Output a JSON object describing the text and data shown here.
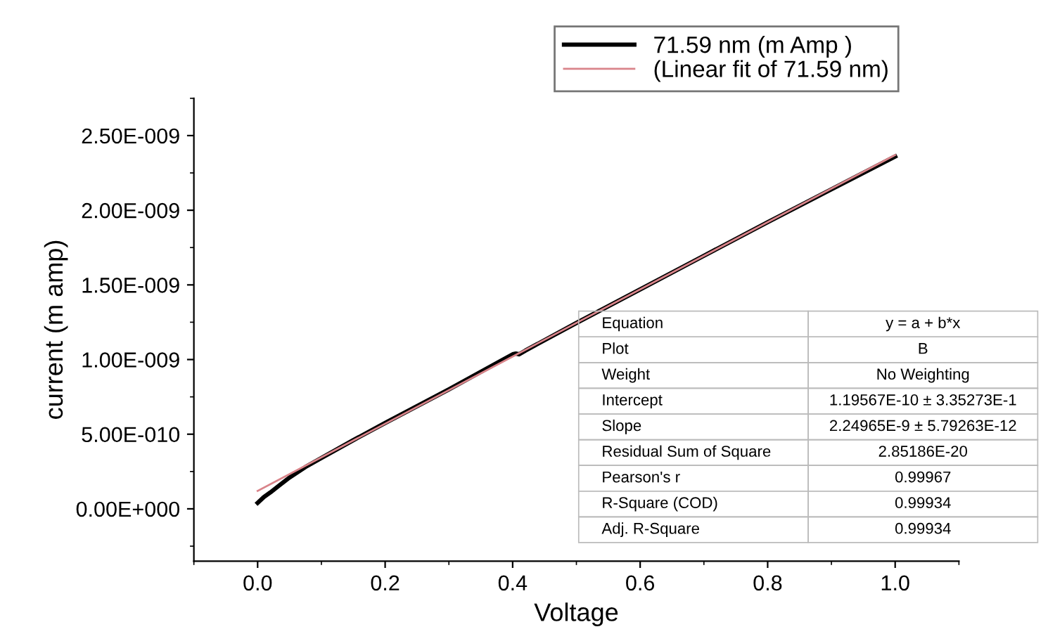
{
  "chart_data": {
    "type": "line",
    "xlabel": "Voltage",
    "ylabel": "current (m amp)",
    "xlim": [
      -0.1,
      1.1
    ],
    "xticks": [
      {
        "value": 0,
        "label": "0.0"
      },
      0.2,
      0.4,
      0.6,
      0.8,
      {
        "value": 1,
        "label": "1.0"
      }
    ],
    "ylim": [
      -3.5e-10,
      2.75e-09
    ],
    "yticks": [
      {
        "value": 0,
        "label": "0.00E+000"
      },
      {
        "value": 5e-10,
        "label": "5.00E-010"
      },
      {
        "value": 1e-09,
        "label": "1.00E-009"
      },
      {
        "value": 1.5e-09,
        "label": "1.50E-009"
      },
      {
        "value": 2e-09,
        "label": "2.00E-009"
      },
      {
        "value": 2.5e-09,
        "label": "2.50E-009"
      }
    ],
    "series": [
      {
        "name": "71.59 nm (m Amp )",
        "color": "#000000",
        "x": [
          0,
          0.01,
          0.02,
          0.035,
          0.05,
          0.075,
          0.1,
          0.15,
          0.2,
          0.3,
          0.4,
          0.405,
          0.41,
          0.42,
          0.5,
          0.6,
          0.7,
          0.8,
          0.9,
          1.0
        ],
        "values": [
          4e-11,
          8e-11,
          1.1e-10,
          1.6e-10,
          2.1e-10,
          2.8e-10,
          3.4e-10,
          4.6e-10,
          5.75e-10,
          8e-10,
          1.035e-09,
          1.04e-09,
          1.035e-09,
          1.06e-09,
          1.245e-09,
          1.47e-09,
          1.695e-09,
          1.92e-09,
          2.14e-09,
          2.36e-09
        ]
      },
      {
        "name": "(Linear fit of 71.59 nm)",
        "color": "#d9848a",
        "x": [
          0,
          1.0
        ],
        "values": [
          1.2e-10,
          2.37e-09
        ]
      }
    ],
    "legend": "top right",
    "grid": false,
    "annotations": [
      "Equation",
      "y = a + b*x",
      "Plot",
      "B",
      "Weight",
      "No Weighting",
      "Intercept",
      "1.19567E-10 ± 3.35273E-1",
      "Slope",
      "2.24965E-9 ± 5.79263E-12",
      "Residual Sum of Square",
      "2.85186E-20",
      "Pearson's r",
      "0.99967",
      "R-Square (COD)",
      "0.99934",
      "Adj. R-Square",
      "0.99934"
    ]
  }
}
